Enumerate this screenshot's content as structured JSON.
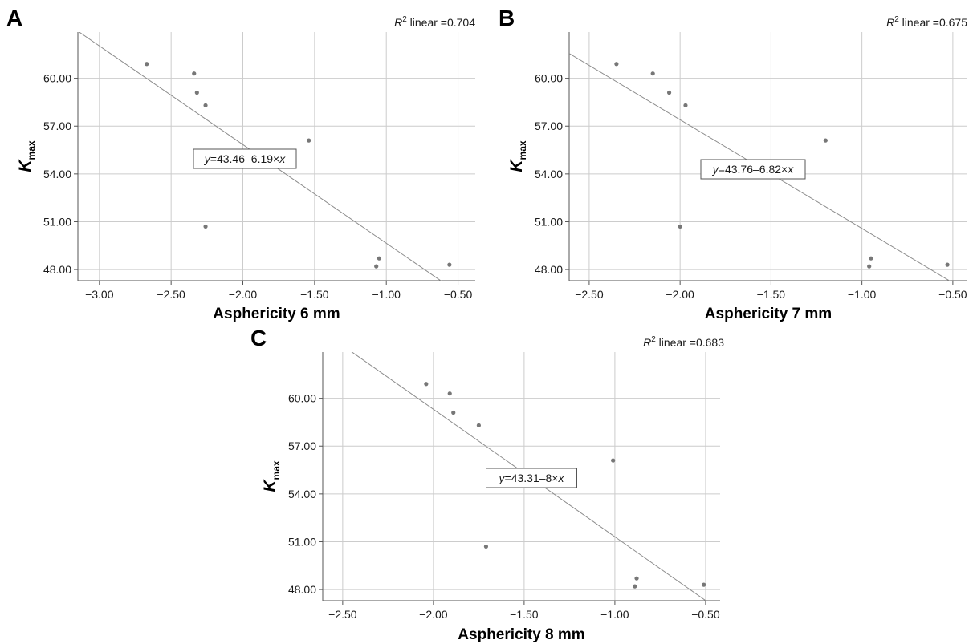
{
  "chart_data": [
    {
      "panel": "A",
      "type": "scatter",
      "xlabel": "Asphericity 6 mm",
      "ylabel_main": "K",
      "ylabel_sub": "max",
      "xlim": [
        -3.15,
        -0.38
      ],
      "ylim": [
        47.3,
        62.9
      ],
      "xticks": [
        -3.0,
        -2.5,
        -2.0,
        -1.5,
        -1.0,
        -0.5
      ],
      "xtick_labels": [
        "−3.00",
        "−2.50",
        "−2.00",
        "−1.50",
        "−1.00",
        "−0.50"
      ],
      "yticks": [
        48,
        51,
        54,
        57,
        60
      ],
      "ytick_labels": [
        "48.00",
        "51.00",
        "54.00",
        "57.00",
        "60.00"
      ],
      "grid": true,
      "r2_label": "R",
      "r2_sup": "2",
      "r2_value": " linear =0.704",
      "fit": {
        "intercept": 43.46,
        "slope": -6.19
      },
      "fit_label_y": "y",
      "fit_label_eq": "=43.46–6.19×",
      "fit_label_x": "x",
      "x": [
        -2.67,
        -2.34,
        -2.32,
        -2.26,
        -2.26,
        -1.54,
        -1.07,
        -1.05,
        -0.56
      ],
      "y": [
        60.9,
        60.3,
        59.1,
        58.3,
        50.7,
        56.1,
        48.2,
        48.7,
        48.3
      ]
    },
    {
      "panel": "B",
      "type": "scatter",
      "xlabel": "Asphericity 7 mm",
      "ylabel_main": "K",
      "ylabel_sub": "max",
      "xlim": [
        -2.61,
        -0.42
      ],
      "ylim": [
        47.3,
        62.9
      ],
      "xticks": [
        -2.5,
        -2.0,
        -1.5,
        -1.0,
        -0.5
      ],
      "xtick_labels": [
        "−2.50",
        "−2.00",
        "−1.50",
        "−1.00",
        "−0.50"
      ],
      "yticks": [
        48,
        51,
        54,
        57,
        60
      ],
      "ytick_labels": [
        "48.00",
        "51.00",
        "54.00",
        "57.00",
        "60.00"
      ],
      "grid": true,
      "r2_label": "R",
      "r2_sup": "2",
      "r2_value": " linear =0.675",
      "fit": {
        "intercept": 43.76,
        "slope": -6.82
      },
      "fit_label_y": "y",
      "fit_label_eq": "=43.76–6.82×",
      "fit_label_x": "x",
      "x": [
        -2.35,
        -2.15,
        -2.06,
        -1.97,
        -2.0,
        -1.2,
        -0.96,
        -0.95,
        -0.53
      ],
      "y": [
        60.9,
        60.3,
        59.1,
        58.3,
        50.7,
        56.1,
        48.2,
        48.7,
        48.3
      ]
    },
    {
      "panel": "C",
      "type": "scatter",
      "xlabel": "Asphericity 8 mm",
      "ylabel_main": "K",
      "ylabel_sub": "max",
      "xlim": [
        -2.61,
        -0.42
      ],
      "ylim": [
        47.3,
        62.9
      ],
      "xticks": [
        -2.5,
        -2.0,
        -1.5,
        -1.0,
        -0.5
      ],
      "xtick_labels": [
        "−2.50",
        "−2.00",
        "−1.50",
        "−1.00",
        "−0.50"
      ],
      "yticks": [
        48,
        51,
        54,
        57,
        60
      ],
      "ytick_labels": [
        "48.00",
        "51.00",
        "54.00",
        "57.00",
        "60.00"
      ],
      "grid": true,
      "r2_label": "R",
      "r2_sup": "2",
      "r2_value": " linear =0.683",
      "fit": {
        "intercept": 43.31,
        "slope": -8.0
      },
      "fit_label_y": "y",
      "fit_label_eq": "=43.31–8×",
      "fit_label_x": "x",
      "x": [
        -2.04,
        -1.91,
        -1.89,
        -1.75,
        -1.71,
        -1.01,
        -0.89,
        -0.88,
        -0.51
      ],
      "y": [
        60.9,
        60.3,
        59.1,
        58.3,
        50.7,
        56.1,
        48.2,
        48.7,
        48.3
      ]
    }
  ],
  "colors": {
    "grid": "#cccccc",
    "axis": "#555555",
    "point": "#777777",
    "fit": "#8c8c8c",
    "text": "#1a1a1a"
  }
}
